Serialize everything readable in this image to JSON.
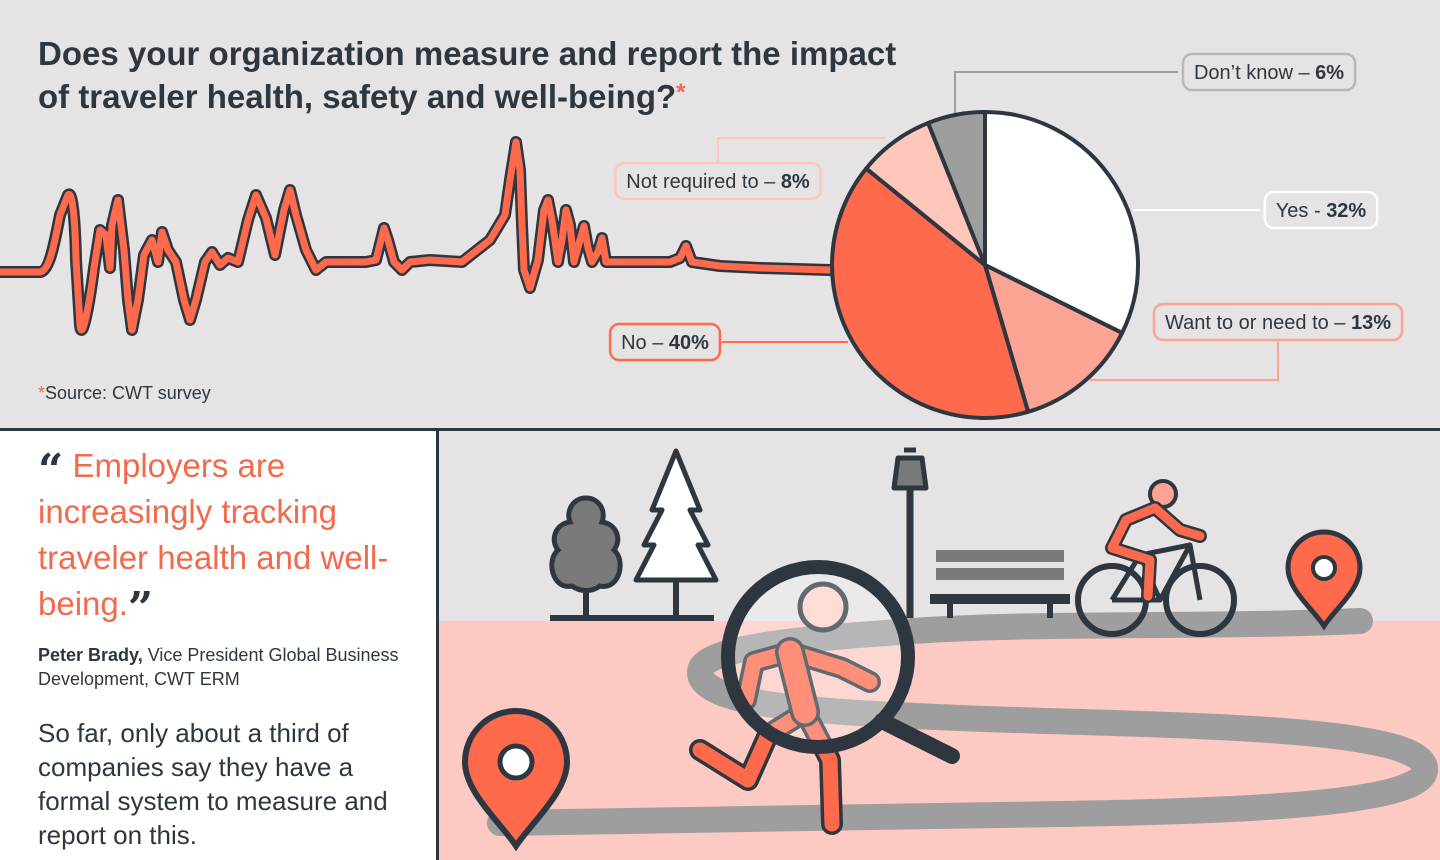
{
  "header": {
    "title": "Does your organization measure and report the impact of traveler health, safety and well-being?",
    "title_asterisk": "*"
  },
  "source": {
    "asterisk": "*",
    "text": "Source: CWT survey"
  },
  "chart_data": {
    "type": "pie",
    "title": "Does your organization measure and report the impact of traveler health, safety and well-being?",
    "slices": [
      {
        "label": "Yes",
        "value": 32,
        "separator": " - ",
        "value_text": "32%",
        "color": "#ffffff"
      },
      {
        "label": "Want to or need to",
        "value": 13,
        "separator": " – ",
        "value_text": "13%",
        "color": "#fba493"
      },
      {
        "label": "No",
        "value": 40,
        "separator": " – ",
        "value_text": "40%",
        "color": "#ff6a4d"
      },
      {
        "label": "Not required to",
        "value": 8,
        "separator": " – ",
        "value_text": "8%",
        "color": "#ffc6bc"
      },
      {
        "label": "Don’t know",
        "value": 6,
        "separator": " – ",
        "value_text": "6%",
        "color": "#9e9e9e"
      }
    ],
    "start": "12 o'clock",
    "direction": "clockwise"
  },
  "quote": {
    "open_mark": "“",
    "text": "Employers are increasingly tracking traveler health and well-being.",
    "close_mark": "”",
    "author": "Peter Brady,",
    "author_title": " Vice President Global Business Development, CWT ERM"
  },
  "body": {
    "text": "So far, only about a third of companies say they have a formal system to measure and report on this."
  },
  "colors": {
    "accent": "#f26a4b",
    "dark": "#2e3740",
    "panel_gray": "#e5e3e4",
    "ground_pink": "#fdcac3",
    "path_gray": "#9e9e9e"
  },
  "illustration": {
    "icons": [
      "heartbeat-line-icon",
      "tree-icon",
      "pine-tree-icon",
      "street-lamp-icon",
      "bench-icon",
      "magnifier-icon",
      "runner-icon",
      "cyclist-icon",
      "map-pin-icon"
    ]
  }
}
